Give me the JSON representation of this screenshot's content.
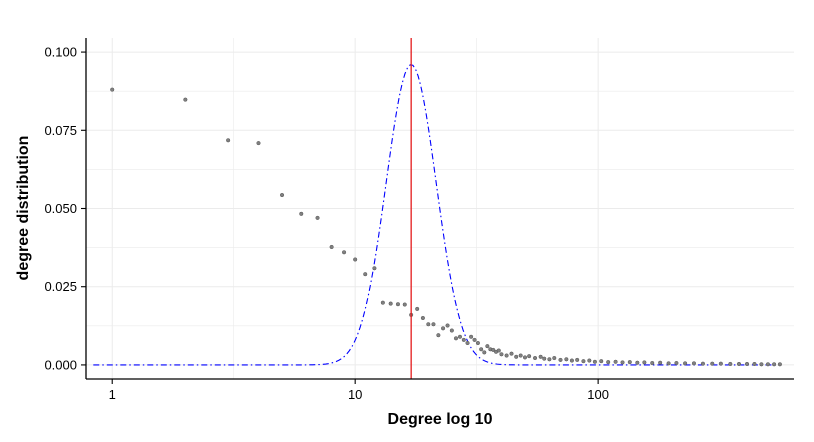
{
  "chart_data": {
    "type": "scatter",
    "xlabel": "Degree log 10",
    "ylabel": "degree distribution",
    "x_scale": "log10",
    "xlim": [
      0.78,
      640
    ],
    "ylim": [
      -0.0045,
      0.1045
    ],
    "x_ticks": [
      {
        "value": 1,
        "label": "1"
      },
      {
        "value": 10,
        "label": "10"
      },
      {
        "value": 100,
        "label": "100"
      }
    ],
    "y_ticks": [
      {
        "value": 0.0,
        "label": "0.000"
      },
      {
        "value": 0.025,
        "label": "0.025"
      },
      {
        "value": 0.05,
        "label": "0.050"
      },
      {
        "value": 0.075,
        "label": "0.075"
      },
      {
        "value": 0.1,
        "label": "0.100"
      }
    ],
    "grid": true,
    "points": [
      [
        1,
        0.088
      ],
      [
        2,
        0.0848
      ],
      [
        3,
        0.0718
      ],
      [
        4,
        0.0709
      ],
      [
        5,
        0.0543
      ],
      [
        6,
        0.0483
      ],
      [
        7,
        0.047
      ],
      [
        8,
        0.0377
      ],
      [
        9,
        0.036
      ],
      [
        10,
        0.0337
      ],
      [
        11,
        0.029
      ],
      [
        12,
        0.0309
      ],
      [
        13,
        0.0199
      ],
      [
        14,
        0.0196
      ],
      [
        15,
        0.0194
      ],
      [
        16,
        0.0193
      ],
      [
        17,
        0.016
      ],
      [
        18,
        0.0179
      ],
      [
        19,
        0.015
      ],
      [
        20,
        0.013
      ],
      [
        21,
        0.013
      ],
      [
        22,
        0.0095
      ],
      [
        23,
        0.0117
      ],
      [
        24,
        0.0126
      ],
      [
        25,
        0.011
      ],
      [
        26,
        0.0085
      ],
      [
        27,
        0.009
      ],
      [
        28,
        0.008
      ],
      [
        29,
        0.007
      ],
      [
        30,
        0.009
      ],
      [
        31,
        0.008
      ],
      [
        32,
        0.007
      ],
      [
        33,
        0.005
      ],
      [
        34,
        0.004
      ],
      [
        35,
        0.006
      ],
      [
        36,
        0.005
      ],
      [
        37,
        0.0048
      ],
      [
        38,
        0.0042
      ],
      [
        39,
        0.0046
      ],
      [
        40,
        0.0034
      ],
      [
        42,
        0.003
      ],
      [
        44,
        0.0036
      ],
      [
        46,
        0.0026
      ],
      [
        48,
        0.003
      ],
      [
        50,
        0.0024
      ],
      [
        52,
        0.0028
      ],
      [
        55,
        0.0022
      ],
      [
        58,
        0.0026
      ],
      [
        60,
        0.002
      ],
      [
        63,
        0.0018
      ],
      [
        66,
        0.0022
      ],
      [
        70,
        0.0016
      ],
      [
        74,
        0.0018
      ],
      [
        78,
        0.0014
      ],
      [
        82,
        0.0016
      ],
      [
        87,
        0.0012
      ],
      [
        92,
        0.0014
      ],
      [
        97,
        0.001
      ],
      [
        103,
        0.0012
      ],
      [
        110,
        0.0009
      ],
      [
        118,
        0.001
      ],
      [
        126,
        0.0008
      ],
      [
        135,
        0.0009
      ],
      [
        145,
        0.0007
      ],
      [
        155,
        0.0008
      ],
      [
        167,
        0.0006
      ],
      [
        180,
        0.0007
      ],
      [
        195,
        0.0005
      ],
      [
        210,
        0.0006
      ],
      [
        228,
        0.0005
      ],
      [
        248,
        0.0005
      ],
      [
        270,
        0.0004
      ],
      [
        295,
        0.0004
      ],
      [
        320,
        0.0004
      ],
      [
        350,
        0.0003
      ],
      [
        380,
        0.0003
      ],
      [
        410,
        0.0003
      ],
      [
        440,
        0.0003
      ],
      [
        470,
        0.0002
      ],
      [
        500,
        0.0002
      ],
      [
        530,
        0.0002
      ],
      [
        560,
        0.0002
      ]
    ],
    "reference_line": {
      "x": 17,
      "color": "#e41a1c"
    },
    "fitted_curve": {
      "color": "#0000ff",
      "style": "dash-dot",
      "peak_x": 17,
      "peak_y": 0.096,
      "log10_sd": 0.103
    },
    "colors": {
      "points": "#808080",
      "point_stroke": "#555555",
      "grid": "#ebebeb",
      "axis": "#000000"
    }
  }
}
